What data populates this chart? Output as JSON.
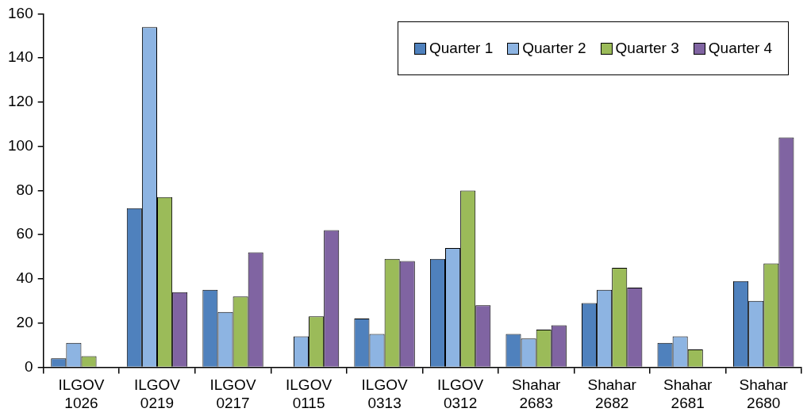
{
  "chart_data": {
    "type": "bar",
    "categories": [
      "ILGOV 1026",
      "ILGOV 0219",
      "ILGOV 0217",
      "ILGOV 0115",
      "ILGOV 0313",
      "ILGOV 0312",
      "Shahar 2683",
      "Shahar 2682",
      "Shahar 2681",
      "Shahar 2680"
    ],
    "series": [
      {
        "name": "Quarter 1",
        "color": "#4f81bd",
        "values": [
          4,
          72,
          35,
          0,
          22,
          49,
          15,
          29,
          11,
          39
        ]
      },
      {
        "name": "Quarter 2",
        "color": "#8db4e2",
        "values": [
          11,
          154,
          25,
          14,
          15,
          54,
          13,
          35,
          14,
          30
        ]
      },
      {
        "name": "Quarter 3",
        "color": "#9bbb59",
        "values": [
          5,
          77,
          32,
          23,
          49,
          80,
          17,
          45,
          8,
          47
        ]
      },
      {
        "name": "Quarter 4",
        "color": "#8064a2",
        "values": [
          0,
          34,
          52,
          62,
          48,
          28,
          19,
          36,
          0,
          104
        ]
      }
    ],
    "ylim": [
      0,
      160
    ],
    "yticks": [
      0,
      20,
      40,
      60,
      80,
      100,
      120,
      140,
      160
    ],
    "grid": false,
    "legend": "top right"
  }
}
